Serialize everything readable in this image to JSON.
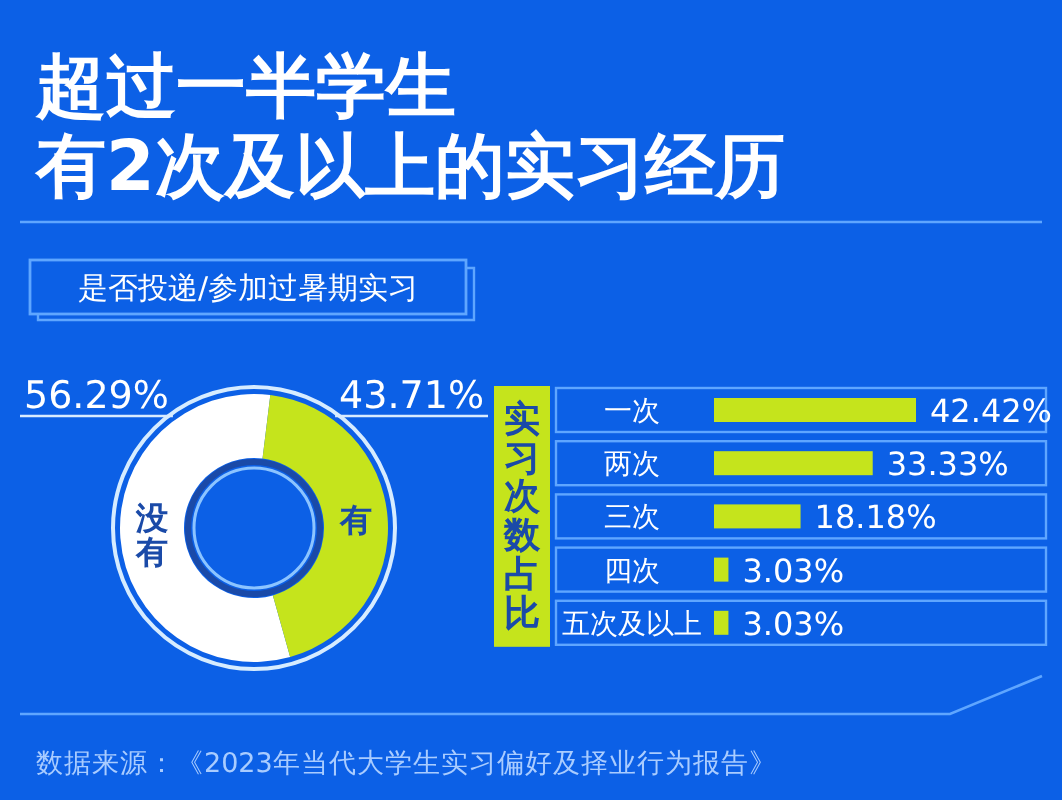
{
  "chart_data": [
    {
      "type": "donut",
      "title": "超过一半学生有2次及以上的实习经历",
      "subtitle": "是否投递/参加过暑期实习",
      "categories": [
        "没有",
        "有"
      ],
      "values": [
        56.29,
        43.71
      ],
      "colors": [
        "#ffffff",
        "#c5e41c"
      ],
      "value_labels": [
        "56.29%",
        "43.71%"
      ]
    },
    {
      "type": "bar",
      "orientation": "horizontal",
      "ylabel": "实习次数占比",
      "categories": [
        "一次",
        "两次",
        "三次",
        "四次",
        "五次及以上"
      ],
      "values": [
        42.42,
        33.33,
        18.18,
        3.03,
        3.03
      ],
      "color": "#c5e41c",
      "value_labels": [
        "42.42%",
        "33.33%",
        "18.18%",
        "3.03%",
        "3.03%"
      ],
      "annotations": [
        "数据来源：《2023年当代大学生实习偏好及择业行为报告》"
      ]
    }
  ]
}
